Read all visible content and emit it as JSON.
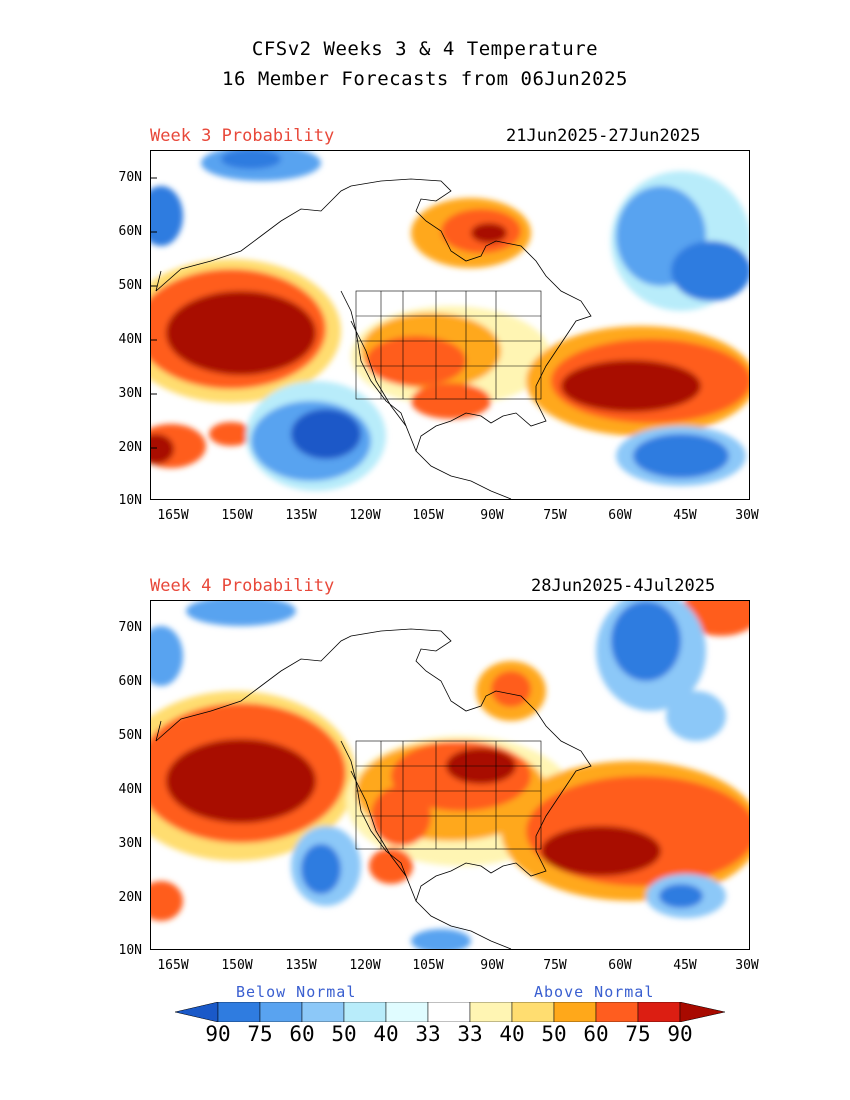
{
  "header": {
    "title_line1": "CFSv2 Weeks 3 & 4 Temperature",
    "title_line2": "16 Member Forecasts from 06Jun2025"
  },
  "panels": [
    {
      "label": "Week 3 Probability",
      "dates": "21Jun2025-27Jun2025"
    },
    {
      "label": "Week 4 Probability",
      "dates": "28Jun2025-4Jul2025"
    }
  ],
  "axes": {
    "lat_labels": [
      "70N",
      "60N",
      "50N",
      "40N",
      "30N",
      "20N",
      "10N"
    ],
    "lon_labels": [
      "165W",
      "150W",
      "135W",
      "120W",
      "105W",
      "90W",
      "75W",
      "60W",
      "45W",
      "30W"
    ]
  },
  "legend": {
    "below_label": "Below Normal",
    "above_label": "Above Normal",
    "values": [
      "90",
      "75",
      "60",
      "50",
      "40",
      "33",
      "33",
      "40",
      "50",
      "60",
      "75",
      "90"
    ],
    "colors": [
      "#1a59c8",
      "#2f7ce0",
      "#59a3f0",
      "#8cc8f8",
      "#b8ecfa",
      "#e0fcff",
      "#ffffff",
      "#fff5b3",
      "#ffdd70",
      "#ffa81a",
      "#ff5d1f",
      "#dc1e12",
      "#a80a00"
    ]
  }
}
